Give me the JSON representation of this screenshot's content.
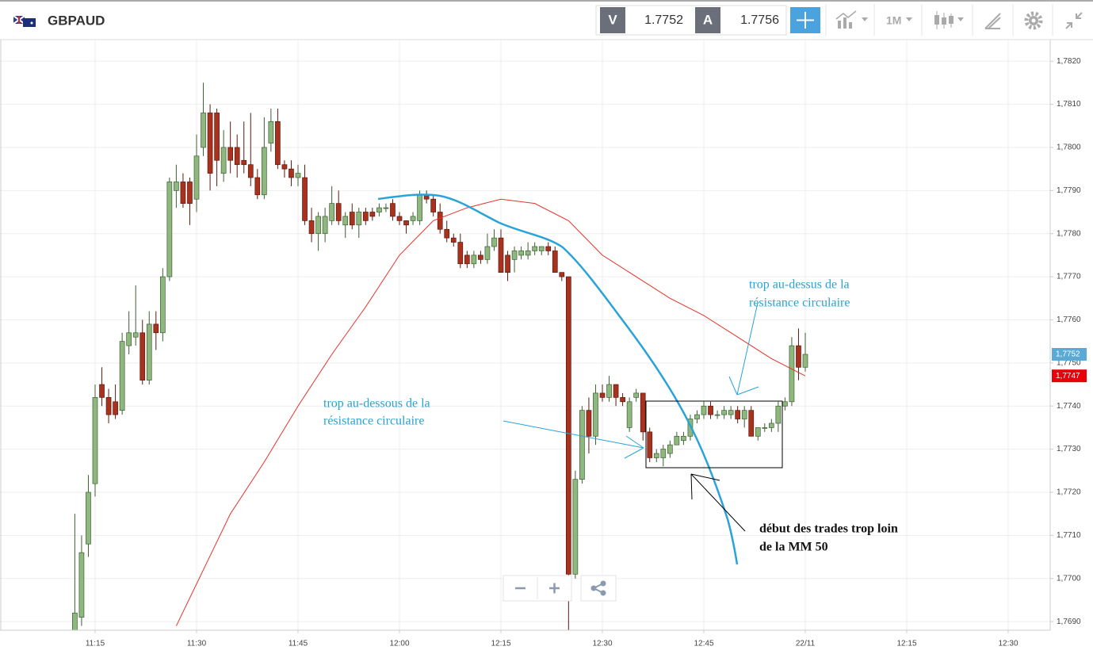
{
  "header": {
    "symbol": "GBPAUD",
    "bid_label": "V",
    "bid": 1.7752,
    "ask_label": "A",
    "ask": 1.7756,
    "timeframe": "1M"
  },
  "chart_data": {
    "type": "candlestick",
    "up_color": "#8fb87f",
    "down_color": "#a8321e",
    "ylim": [
      1.7688,
      1.7825
    ],
    "yticks": [
      {
        "value": 1.769,
        "label": "1,7690"
      },
      {
        "value": 1.77,
        "label": "1,7700"
      },
      {
        "value": 1.771,
        "label": "1,7710"
      },
      {
        "value": 1.772,
        "label": "1,7720"
      },
      {
        "value": 1.773,
        "label": "1,7730"
      },
      {
        "value": 1.774,
        "label": "1,7740"
      },
      {
        "value": 1.775,
        "label": "1,7750"
      },
      {
        "value": 1.776,
        "label": "1,7760"
      },
      {
        "value": 1.777,
        "label": "1,7770"
      },
      {
        "value": 1.778,
        "label": "1,7780"
      },
      {
        "value": 1.779,
        "label": "1,7790"
      },
      {
        "value": 1.78,
        "label": "1,7800"
      },
      {
        "value": 1.781,
        "label": "1,7810"
      },
      {
        "value": 1.782,
        "label": "1,7820"
      }
    ],
    "xticks": [
      "11:15",
      "11:30",
      "11:45",
      "12:00",
      "12:15",
      "12:30",
      "12:45",
      "22/11",
      "12:15",
      "12:30"
    ],
    "grid": true,
    "candles": {
      "x": [
        "11:12",
        "11:13",
        "11:14",
        "11:15",
        "11:16",
        "11:17",
        "11:18",
        "11:19",
        "11:20",
        "11:21",
        "11:22",
        "11:23",
        "11:24",
        "11:25",
        "11:26",
        "11:27",
        "11:28",
        "11:29",
        "11:30",
        "11:31",
        "11:32",
        "11:33",
        "11:34",
        "11:35",
        "11:36",
        "11:37",
        "11:38",
        "11:39",
        "11:40",
        "11:41",
        "11:42",
        "11:43",
        "11:44",
        "11:45",
        "11:46",
        "11:47",
        "11:48",
        "11:49",
        "11:50",
        "11:51",
        "11:52",
        "11:53",
        "11:54",
        "11:55",
        "11:56",
        "11:57",
        "11:58",
        "11:59",
        "12:00",
        "12:01",
        "12:02",
        "12:03",
        "12:04",
        "12:05",
        "12:06",
        "12:07",
        "12:08",
        "12:09",
        "12:10",
        "12:11",
        "12:12",
        "12:13",
        "12:14",
        "12:15",
        "12:16",
        "12:17",
        "12:18",
        "12:19",
        "12:20",
        "12:21",
        "12:22",
        "12:23",
        "12:24",
        "12:25",
        "12:26",
        "12:27",
        "12:28",
        "12:29",
        "12:30",
        "12:31",
        "12:32",
        "12:33",
        "12:34",
        "12:35",
        "12:36",
        "12:37",
        "12:38",
        "12:39",
        "12:40",
        "12:41",
        "12:42",
        "12:43",
        "12:44",
        "12:45",
        "12:46",
        "12:47",
        "12:48",
        "12:49",
        "12:50",
        "12:51",
        "12:52",
        "12:53",
        "12:54",
        "12:55",
        "12:56",
        "12:57",
        "12:58",
        "12:59",
        "13:00"
      ],
      "open": [
        1.7688,
        1.7691,
        1.7708,
        1.7722,
        1.7745,
        1.7742,
        1.7741,
        1.7739,
        1.7754,
        1.7756,
        1.7757,
        1.7746,
        1.7759,
        1.7757,
        1.777,
        1.779,
        1.7792,
        1.7792,
        1.7788,
        1.78,
        1.7808,
        1.7808,
        1.7794,
        1.78,
        1.78,
        1.7797,
        1.7796,
        1.7793,
        1.7789,
        1.7801,
        1.7806,
        1.7796,
        1.7795,
        1.7793,
        1.7793,
        1.7783,
        1.778,
        1.778,
        1.7783,
        1.7787,
        1.7782,
        1.7785,
        1.7782,
        1.7785,
        1.7785,
        1.7785,
        1.7786,
        1.7787,
        1.7784,
        1.7783,
        1.7783,
        1.7783,
        1.7789,
        1.7788,
        1.7785,
        1.7781,
        1.7779,
        1.7778,
        1.7775,
        1.7773,
        1.7775,
        1.7774,
        1.7777,
        1.7779,
        1.7775,
        1.7774,
        1.7775,
        1.7775,
        1.7776,
        1.7776,
        1.7777,
        1.7776,
        1.7771,
        1.777,
        1.7701,
        1.7723,
        1.7739,
        1.7733,
        1.7743,
        1.7742,
        1.7745,
        1.7742,
        1.7735,
        1.7742,
        1.7743,
        1.7734,
        1.7728,
        1.7728,
        1.7729,
        1.7731,
        1.7732,
        1.7733,
        1.7737,
        1.7738,
        1.774,
        1.7738,
        1.7738,
        1.7738,
        1.7739,
        1.7737,
        1.7739,
        1.7733,
        1.7735,
        1.7735,
        1.7736,
        1.774,
        1.7741,
        1.7754,
        1.7749
      ],
      "high": [
        1.7715,
        1.771,
        1.7724,
        1.7745,
        1.7749,
        1.7744,
        1.7745,
        1.7757,
        1.7762,
        1.7768,
        1.776,
        1.7762,
        1.7762,
        1.7772,
        1.7793,
        1.7796,
        1.7794,
        1.7793,
        1.7803,
        1.7815,
        1.781,
        1.7809,
        1.7804,
        1.7806,
        1.7803,
        1.7806,
        1.7808,
        1.7795,
        1.7807,
        1.7809,
        1.7809,
        1.7797,
        1.7797,
        1.7796,
        1.7796,
        1.7786,
        1.7785,
        1.7786,
        1.7791,
        1.779,
        1.7785,
        1.7787,
        1.7786,
        1.7786,
        1.7786,
        1.7787,
        1.7787,
        1.7788,
        1.7785,
        1.7783,
        1.7785,
        1.779,
        1.779,
        1.7789,
        1.7787,
        1.7783,
        1.778,
        1.778,
        1.7776,
        1.7776,
        1.7776,
        1.778,
        1.7781,
        1.7781,
        1.7776,
        1.7777,
        1.7777,
        1.7778,
        1.7778,
        1.7777,
        1.7778,
        1.7777,
        1.7771,
        1.777,
        1.7725,
        1.774,
        1.7742,
        1.7745,
        1.7745,
        1.7747,
        1.7745,
        1.7743,
        1.7742,
        1.7744,
        1.7743,
        1.7735,
        1.773,
        1.7731,
        1.7732,
        1.7734,
        1.7734,
        1.7738,
        1.7739,
        1.7741,
        1.7741,
        1.7739,
        1.774,
        1.774,
        1.774,
        1.774,
        1.774,
        1.7735,
        1.7736,
        1.7737,
        1.7741,
        1.7742,
        1.7756,
        1.7758,
        1.7757
      ],
      "low": [
        1.7688,
        1.7689,
        1.7705,
        1.7719,
        1.774,
        1.7736,
        1.7737,
        1.7738,
        1.7752,
        1.7754,
        1.7745,
        1.7745,
        1.7753,
        1.7755,
        1.7769,
        1.7786,
        1.7786,
        1.7782,
        1.7785,
        1.7798,
        1.779,
        1.7791,
        1.7792,
        1.7794,
        1.7793,
        1.7794,
        1.7791,
        1.7788,
        1.7788,
        1.7799,
        1.7795,
        1.7793,
        1.7791,
        1.7791,
        1.7782,
        1.7778,
        1.7776,
        1.7778,
        1.7782,
        1.7782,
        1.7779,
        1.7781,
        1.7779,
        1.7782,
        1.7783,
        1.7784,
        1.7785,
        1.7783,
        1.7782,
        1.778,
        1.7782,
        1.7782,
        1.7787,
        1.7784,
        1.778,
        1.7778,
        1.7777,
        1.7772,
        1.7772,
        1.7772,
        1.7773,
        1.7773,
        1.7776,
        1.7771,
        1.7769,
        1.7771,
        1.7774,
        1.7774,
        1.7775,
        1.7775,
        1.7775,
        1.7771,
        1.7769,
        1.7688,
        1.77,
        1.7722,
        1.7729,
        1.7731,
        1.7741,
        1.7741,
        1.774,
        1.774,
        1.7734,
        1.7741,
        1.7732,
        1.7727,
        1.7727,
        1.7726,
        1.7728,
        1.7731,
        1.7731,
        1.7732,
        1.7736,
        1.7737,
        1.7737,
        1.7737,
        1.7737,
        1.7737,
        1.7736,
        1.7735,
        1.7733,
        1.7732,
        1.7734,
        1.7734,
        1.7734,
        1.7739,
        1.774,
        1.7746,
        1.7748
      ],
      "close": [
        1.7692,
        1.7706,
        1.772,
        1.7742,
        1.7742,
        1.7738,
        1.7738,
        1.7755,
        1.7757,
        1.7757,
        1.7746,
        1.7759,
        1.7757,
        1.777,
        1.7792,
        1.7792,
        1.7787,
        1.7787,
        1.7798,
        1.7808,
        1.7794,
        1.7797,
        1.78,
        1.7797,
        1.7796,
        1.7796,
        1.7793,
        1.7789,
        1.78,
        1.7806,
        1.7796,
        1.7795,
        1.7793,
        1.7794,
        1.7783,
        1.778,
        1.7784,
        1.7784,
        1.7787,
        1.7783,
        1.7784,
        1.7782,
        1.7785,
        1.7783,
        1.7784,
        1.7786,
        1.7786,
        1.7784,
        1.7783,
        1.7782,
        1.7784,
        1.7789,
        1.7788,
        1.7785,
        1.7781,
        1.7779,
        1.7778,
        1.7773,
        1.7773,
        1.7775,
        1.7774,
        1.7777,
        1.7779,
        1.7771,
        1.7771,
        1.7776,
        1.7776,
        1.7776,
        1.7777,
        1.7777,
        1.7776,
        1.7771,
        1.777,
        1.7701,
        1.7723,
        1.7739,
        1.7733,
        1.7743,
        1.7742,
        1.7745,
        1.7742,
        1.7741,
        1.7741,
        1.7743,
        1.7734,
        1.7728,
        1.7729,
        1.773,
        1.7731,
        1.7733,
        1.7733,
        1.7737,
        1.7738,
        1.774,
        1.7738,
        1.7738,
        1.7739,
        1.7739,
        1.7737,
        1.7739,
        1.7733,
        1.7735,
        1.7735,
        1.7736,
        1.774,
        1.7741,
        1.7754,
        1.7749,
        1.7752
      ]
    },
    "ma": {
      "color": "#e8312a",
      "x": [
        "11:27",
        "11:35",
        "11:40",
        "11:45",
        "11:50",
        "11:55",
        "12:00",
        "12:05",
        "12:10",
        "12:15",
        "12:20",
        "12:25",
        "12:30",
        "12:35",
        "12:40",
        "12:45",
        "12:50",
        "12:55",
        "13:00"
      ],
      "values": [
        1.7689,
        1.7715,
        1.7727,
        1.774,
        1.7752,
        1.7763,
        1.7775,
        1.7783,
        1.7786,
        1.7788,
        1.7787,
        1.7783,
        1.7775,
        1.777,
        1.7765,
        1.7761,
        1.7756,
        1.7751,
        1.7747
      ]
    },
    "price_labels": [
      {
        "value": 1.7752,
        "label": "1,7752",
        "color": "#5aa9d6"
      },
      {
        "value": 1.7747,
        "label": "1,7747",
        "color": "#e8000b"
      }
    ],
    "annotations": {
      "above": [
        "trop au-dessus de la",
        "résistance circulaire"
      ],
      "below": [
        "trop au-dessous de la",
        "résistance circulaire"
      ],
      "trades": [
        "début des trades trop loin",
        "de la MM 50"
      ]
    }
  }
}
